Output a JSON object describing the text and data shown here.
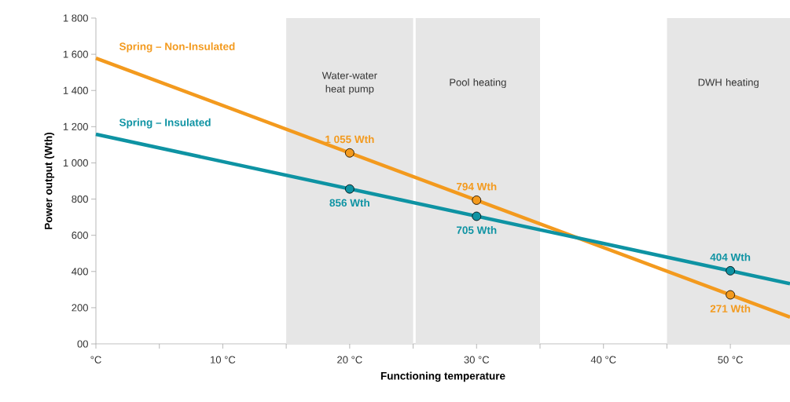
{
  "chart_data": {
    "type": "line",
    "xlabel": "Functioning temperature",
    "ylabel": "Power output (Wth)",
    "xlim": [
      0,
      54.7
    ],
    "ylim": [
      0,
      1800
    ],
    "xticks": [
      {
        "value": 0,
        "label": "°C"
      },
      {
        "value": 5,
        "label": null
      },
      {
        "value": 10,
        "label": "10 °C"
      },
      {
        "value": 15,
        "label": null
      },
      {
        "value": 20,
        "label": "20 °C"
      },
      {
        "value": 25,
        "label": null
      },
      {
        "value": 30,
        "label": "30 °C"
      },
      {
        "value": 35,
        "label": null
      },
      {
        "value": 40,
        "label": "40 °C"
      },
      {
        "value": 45,
        "label": null
      },
      {
        "value": 50,
        "label": "50 °C"
      }
    ],
    "yticks": [
      {
        "value": 0,
        "label": "00"
      },
      200,
      400,
      600,
      800,
      {
        "value": 1000,
        "label": "1 000"
      },
      {
        "value": 1200,
        "label": "1 200"
      },
      {
        "value": 1400,
        "label": "1 400"
      },
      {
        "value": 1600,
        "label": "1 600"
      },
      {
        "value": 1800,
        "label": "1 800"
      }
    ],
    "bands": [
      {
        "axis": "x",
        "from": 15,
        "to": 25,
        "label": "Water-water heat pump",
        "color": "#e6e6e6"
      },
      {
        "axis": "x",
        "from": 25.2,
        "to": 35,
        "label": "Pool heating",
        "color": "#e6e6e6"
      },
      {
        "axis": "x",
        "from": 45,
        "to": 54.7,
        "label": "DWH heating",
        "color": "#e6e6e6"
      }
    ],
    "series": [
      {
        "name": "Spring – Non-Insulated",
        "color": "#f39a1e",
        "x": [
          0,
          54.7
        ],
        "values": [
          1578,
          148
        ],
        "marker": "none"
      },
      {
        "name": "Spring – Insulated",
        "color": "#0e93a3",
        "x": [
          0,
          54.7
        ],
        "values": [
          1158,
          333
        ],
        "marker": "none"
      },
      {
        "type": "scatter",
        "color": "#f39a1e",
        "x": [
          20,
          30,
          50
        ],
        "values": [
          1055,
          794,
          271
        ],
        "marker": "circle",
        "value_labels": [
          "1 055 Wth",
          "794 Wth",
          "271 Wth"
        ]
      },
      {
        "type": "scatter",
        "color": "#0e93a3",
        "x": [
          20,
          30,
          50
        ],
        "values": [
          856,
          705,
          404
        ],
        "marker": "circle",
        "value_labels": [
          "856 Wth",
          "705 Wth",
          "404 Wth"
        ]
      }
    ],
    "grid": false
  }
}
